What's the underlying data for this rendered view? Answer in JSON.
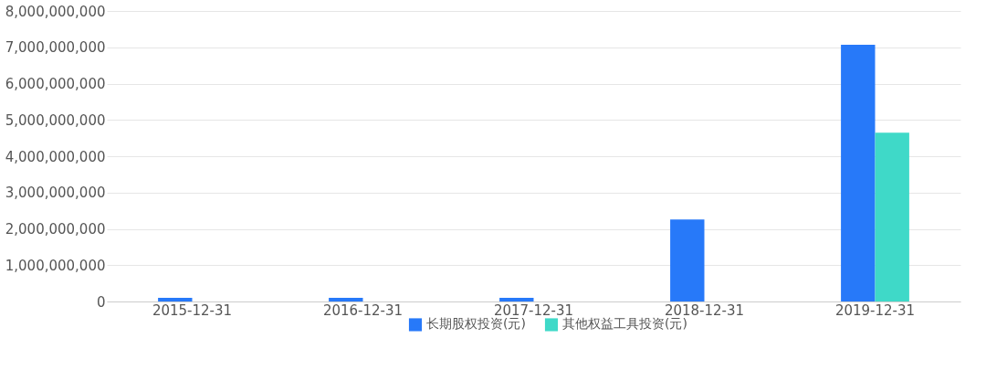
{
  "chart_data": {
    "type": "bar",
    "categories": [
      "2015-12-31",
      "2016-12-31",
      "2017-12-31",
      "2018-12-31",
      "2019-12-31"
    ],
    "series": [
      {
        "name": "长期股权投资(元)",
        "color": "#2779f9",
        "values": [
          100000000,
          100000000,
          100000000,
          2260000000,
          7070000000
        ]
      },
      {
        "name": "其他权益工具投资(元)",
        "color": "#3fd9c8",
        "values": [
          null,
          null,
          null,
          null,
          4650000000
        ]
      }
    ],
    "ylim": [
      0,
      8000000000
    ],
    "yticks": [
      0,
      {
        "value": 1000000000,
        "label": "1,000,000,000"
      },
      {
        "value": 2000000000,
        "label": "2,000,000,000"
      },
      {
        "value": 3000000000,
        "label": "3,000,000,000"
      },
      {
        "value": 4000000000,
        "label": "4,000,000,000"
      },
      {
        "value": 5000000000,
        "label": "5,000,000,000"
      },
      {
        "value": 6000000000,
        "label": "6,000,000,000"
      },
      {
        "value": 7000000000,
        "label": "7,000,000,000"
      },
      {
        "value": 8000000000,
        "label": "8,000,000,000"
      }
    ],
    "grid": "y",
    "legend": "bottom"
  }
}
